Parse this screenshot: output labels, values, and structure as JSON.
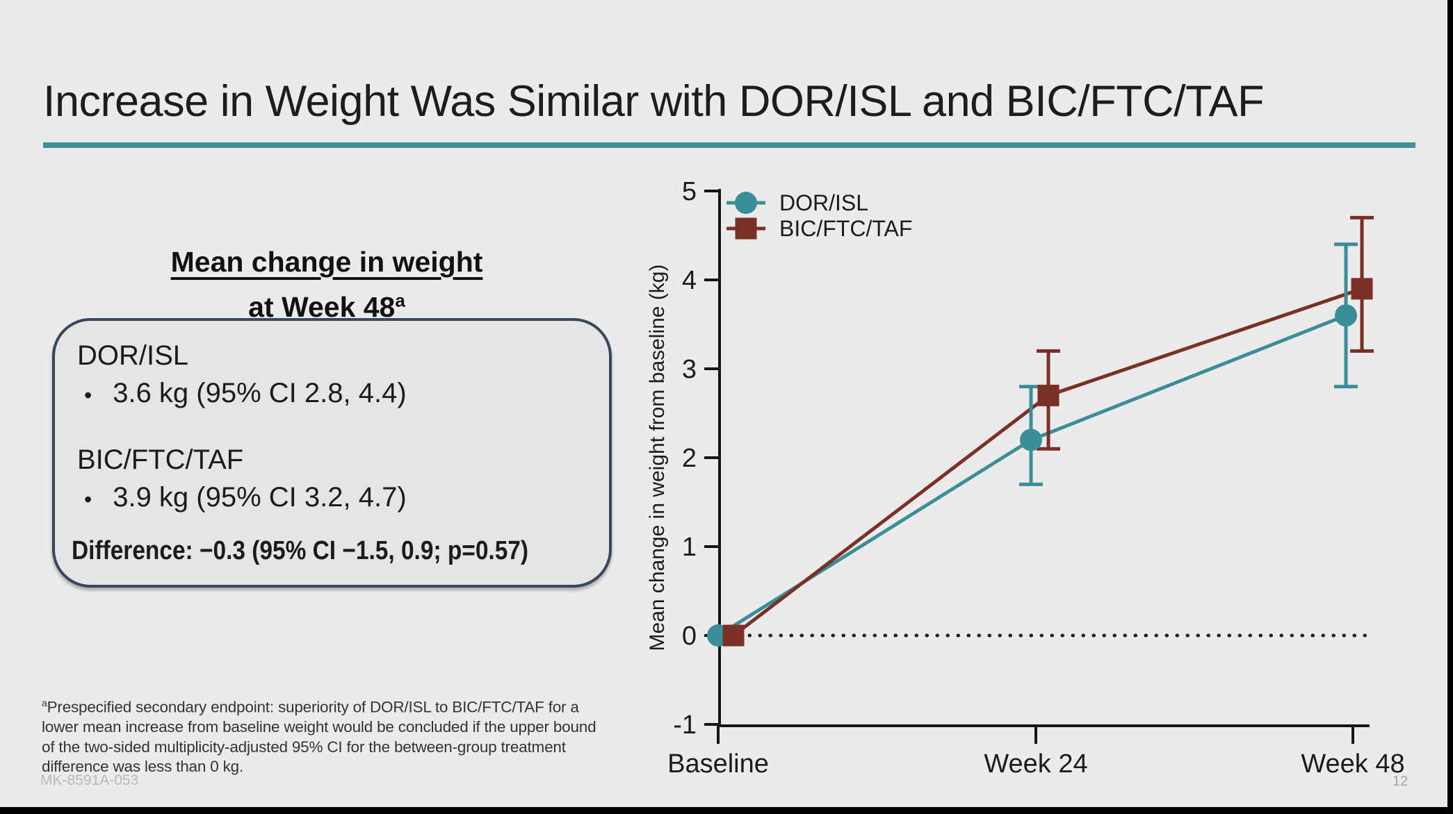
{
  "slide": {
    "title": "Increase in Weight Was Similar with DOR/ISL and BIC/FTC/TAF"
  },
  "left_panel": {
    "heading_line1": "Mean change in weight",
    "heading_line2": "at Week 48",
    "heading_superscript": "a",
    "box": {
      "bullet": "•",
      "group1_name": "DOR/ISL",
      "group1_value": "3.6 kg (95% CI 2.8, 4.4)",
      "group2_name": "BIC/FTC/TAF",
      "group2_value": "3.9 kg (95% CI 3.2, 4.7)",
      "difference": "Difference: −0.3 (95% CI −1.5, 0.9; p=0.57)"
    }
  },
  "footnote": {
    "marker": "a",
    "text": "Prespecified secondary endpoint: superiority of DOR/ISL to BIC/FTC/TAF for a\nlower mean increase from baseline weight would be concluded if the upper bound\nof the two-sided multiplicity-adjusted 95% CI for the between-group treatment\ndifference was less than 0 kg."
  },
  "footer": {
    "study_id": "MK-8591A-053",
    "page_number": "12"
  },
  "colors": {
    "background": "#EBECEA",
    "title_rule_teal": "#43909A",
    "box_border": "#39475A",
    "dor_isl_teal": "#3B8D99",
    "bic_ftc_taf_red": "#7B2F26",
    "axis_black": "#161616"
  },
  "chart_data": {
    "type": "line",
    "title": "",
    "xlabel": "",
    "ylabel": "Mean change in weight from baseline (kg)",
    "categories": [
      "Baseline",
      "Week 24",
      "Week 48"
    ],
    "ylim": [
      -1,
      5
    ],
    "yticks": [
      5,
      4,
      3,
      2,
      1,
      0,
      -1
    ],
    "grid": false,
    "legend_position": "top-left-inside",
    "reference_line_y": 0,
    "reference_line_style": "dotted",
    "series": [
      {
        "name": "DOR/ISL",
        "marker": "circle",
        "color": "#3B8D99",
        "values": [
          0,
          2.2,
          3.6
        ],
        "ci_low": [
          null,
          1.7,
          2.8
        ],
        "ci_high": [
          null,
          2.8,
          4.4
        ],
        "point_dx": [
          0,
          -7,
          -10
        ]
      },
      {
        "name": "BIC/FTC/TAF",
        "marker": "square",
        "color": "#7B2F26",
        "values": [
          0,
          2.7,
          3.9
        ],
        "ci_low": [
          null,
          2.1,
          3.2
        ],
        "ci_high": [
          null,
          3.2,
          4.7
        ],
        "point_dx": [
          22,
          18,
          13
        ]
      }
    ]
  }
}
